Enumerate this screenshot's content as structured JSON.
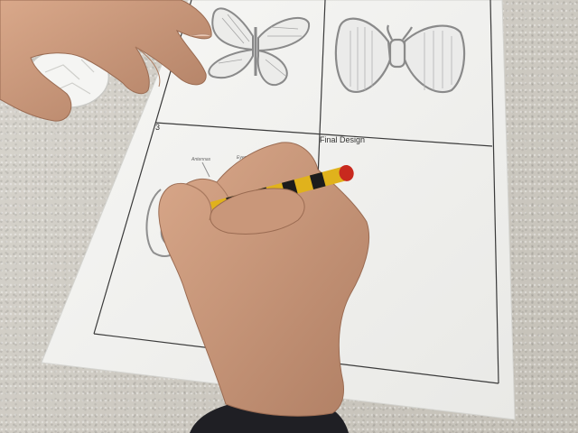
{
  "worksheet": {
    "cell_number": "3",
    "final_design_label": "Final Design",
    "annotations": [
      "Antennas",
      "Eyes"
    ]
  },
  "colors": {
    "countertop": "#cfcbc3",
    "paper": "#f4f4f2",
    "grid_line": "#3a3a3a",
    "skin": "#c9977a",
    "pencil_yellow": "#e0b21c",
    "pencil_black": "#1c1c1c",
    "eraser_red": "#c8291e",
    "sleeve": "#1f1f24"
  }
}
